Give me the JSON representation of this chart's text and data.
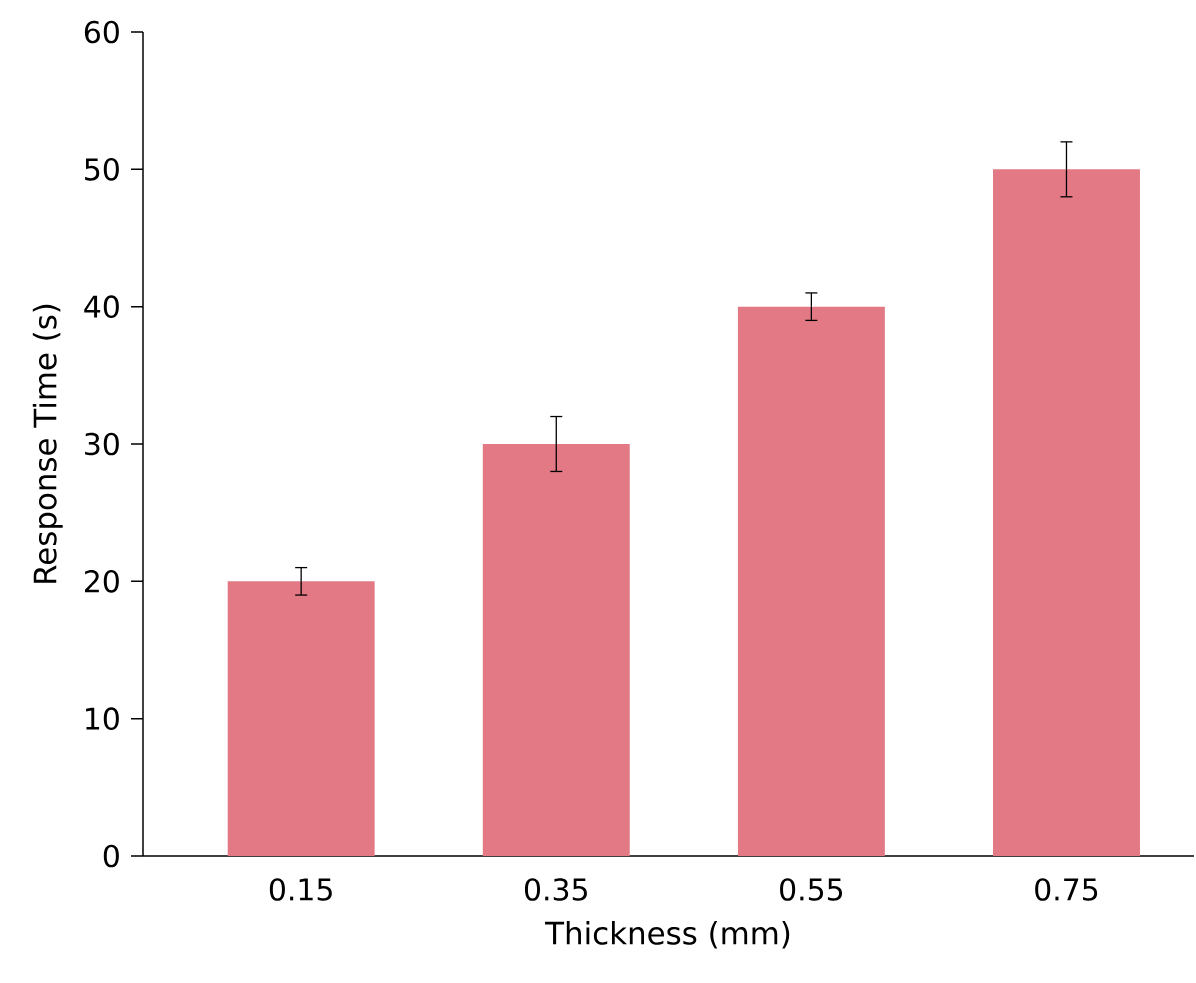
{
  "chart_data": {
    "type": "bar",
    "xlabel": "Thickness (mm)",
    "ylabel": "Response Time (s)",
    "categories": [
      "0.15",
      "0.35",
      "0.55",
      "0.75"
    ],
    "values": [
      20,
      30,
      40,
      50
    ],
    "errors": [
      1,
      2,
      1,
      2
    ],
    "color": "#e27985",
    "ylim": [
      0,
      60
    ],
    "yticks": [
      0,
      10,
      20,
      30,
      40,
      50,
      60
    ],
    "grid": false
  }
}
